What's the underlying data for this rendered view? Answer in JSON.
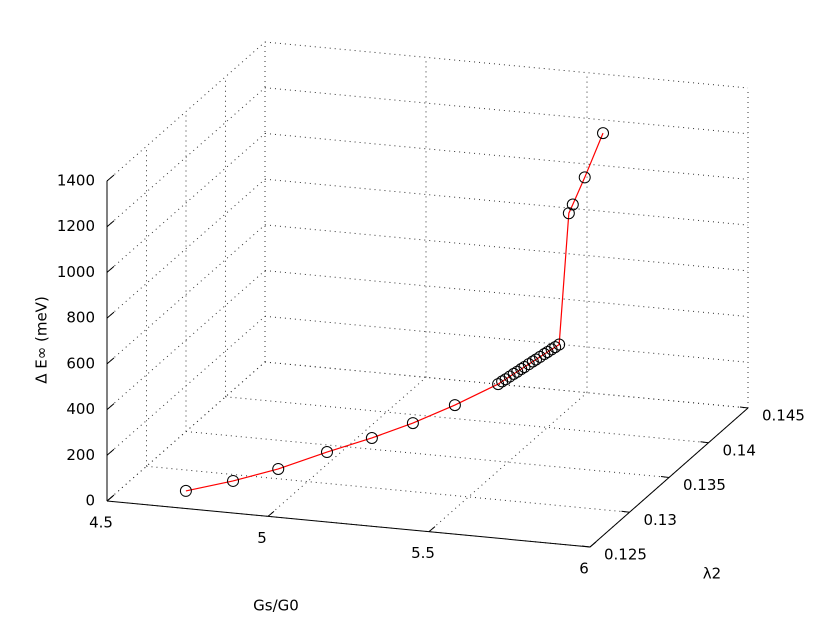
{
  "chart_data": {
    "type": "line3d",
    "xlabel": "Gs/G0",
    "ylabel": "λ2",
    "zlabel": "Δ E∞ (meV)",
    "x": [
      4.745,
      4.873,
      4.995,
      5.128,
      5.249,
      5.358,
      5.47,
      5.592,
      5.602,
      5.613,
      5.623,
      5.633,
      5.644,
      5.654,
      5.664,
      5.675,
      5.685,
      5.695,
      5.705,
      5.716,
      5.726,
      5.736,
      5.747,
      5.757,
      5.765,
      5.765,
      5.78,
      5.8
    ],
    "y": [
      0.125,
      0.12575,
      0.1265,
      0.12725,
      0.128,
      0.12875,
      0.1295,
      0.13,
      0.1301,
      0.1301,
      0.1302,
      0.1303,
      0.1303,
      0.1304,
      0.1304,
      0.1305,
      0.1306,
      0.1306,
      0.1307,
      0.1308,
      0.1308,
      0.1309,
      0.1309,
      0.131,
      0.1319,
      0.1324,
      0.1333,
      0.1348
    ],
    "z": [
      77,
      115,
      161,
      230,
      285,
      342,
      413,
      506,
      516,
      527,
      537,
      547,
      558,
      568,
      578,
      589,
      599,
      609,
      619,
      630,
      640,
      650,
      661,
      671,
      1219,
      1242,
      1335,
      1486
    ],
    "color": "#ff0000",
    "marker_color": "#000000",
    "xlim": [
      4.5,
      6
    ],
    "ylim": [
      0.125,
      0.145
    ],
    "zlim": [
      0,
      1400
    ],
    "xticks": [
      4.5,
      5,
      5.5,
      6
    ],
    "yticks": [
      0.125,
      0.13,
      0.135,
      0.14,
      0.145
    ],
    "zticks": [
      0,
      200,
      400,
      600,
      800,
      1000,
      1200,
      1400
    ],
    "grid": true
  }
}
